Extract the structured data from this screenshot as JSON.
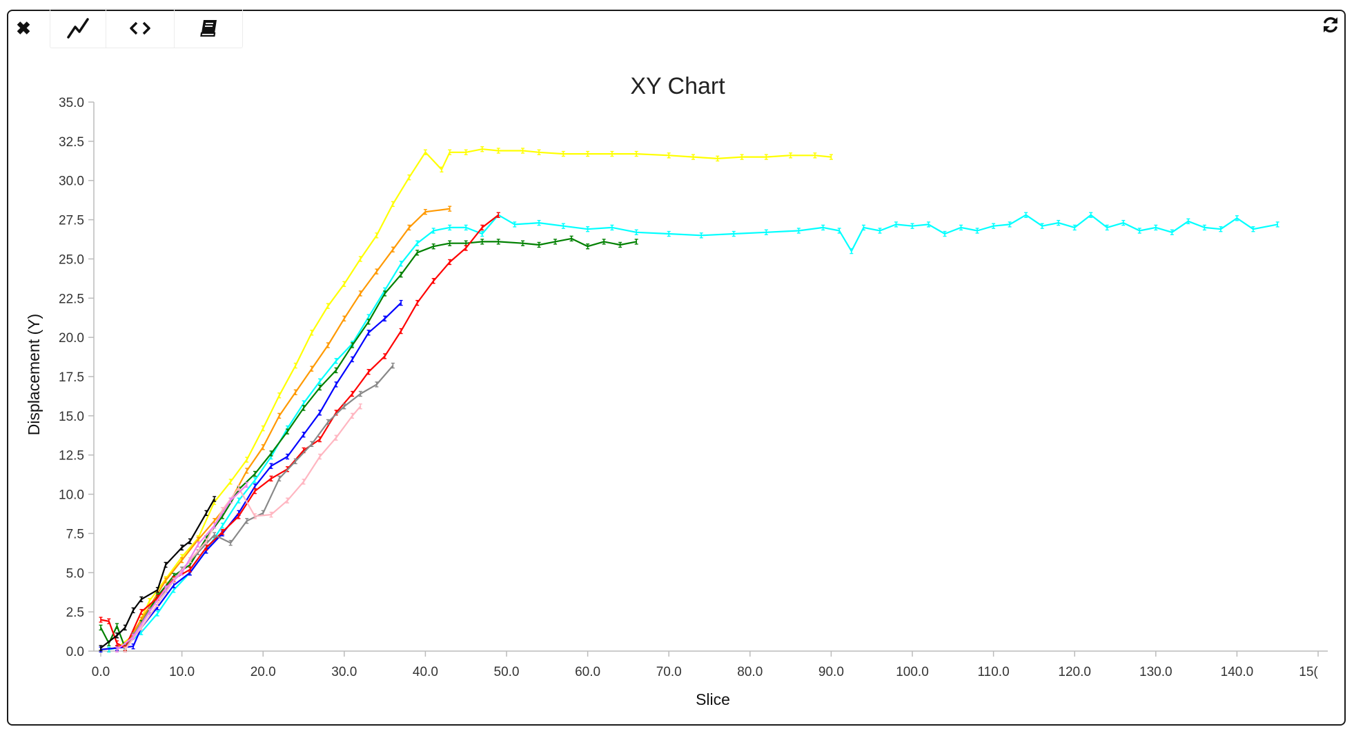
{
  "toolbar": {
    "close_icon": "close-icon",
    "tabs": [
      {
        "name": "chart-tab",
        "icon": "line-chart-icon"
      },
      {
        "name": "code-tab",
        "icon": "code-icon"
      },
      {
        "name": "docs-tab",
        "icon": "book-icon"
      }
    ],
    "refresh_icon": "refresh-icon"
  },
  "chart_data": {
    "type": "line",
    "title": "XY Chart",
    "xlabel": "Slice",
    "ylabel": "Displacement (Y)",
    "xlim": [
      0,
      150
    ],
    "ylim": [
      0,
      35
    ],
    "x_ticks": [
      "0.0",
      "10.0",
      "20.0",
      "30.0",
      "40.0",
      "50.0",
      "60.0",
      "70.0",
      "80.0",
      "90.0",
      "100.0",
      "110.0",
      "120.0",
      "130.0",
      "140.0",
      "15("
    ],
    "y_ticks": [
      "0.0",
      "2.5",
      "5.0",
      "7.5",
      "10.0",
      "12.5",
      "15.0",
      "17.5",
      "20.0",
      "22.5",
      "25.0",
      "27.5",
      "30.0",
      "32.5",
      "35.0"
    ],
    "grid": false,
    "legend": "none",
    "series": [
      {
        "color": "#ffff00",
        "points": [
          [
            0,
            0.1
          ],
          [
            2,
            0.2
          ],
          [
            4,
            1.0
          ],
          [
            6,
            3.2
          ],
          [
            8,
            4.6
          ],
          [
            10,
            6.0
          ],
          [
            12,
            7.2
          ],
          [
            14,
            9.5
          ],
          [
            16,
            10.8
          ],
          [
            18,
            12.2
          ],
          [
            20,
            14.2
          ],
          [
            22,
            16.3
          ],
          [
            24,
            18.2
          ],
          [
            26,
            20.3
          ],
          [
            28,
            22.0
          ],
          [
            30,
            23.4
          ],
          [
            32,
            25.0
          ],
          [
            34,
            26.5
          ],
          [
            36,
            28.5
          ],
          [
            38,
            30.2
          ],
          [
            40,
            31.8
          ],
          [
            42,
            30.7
          ],
          [
            43,
            31.8
          ],
          [
            45,
            31.8
          ],
          [
            47,
            32.0
          ],
          [
            49,
            31.9
          ],
          [
            52,
            31.9
          ],
          [
            54,
            31.8
          ],
          [
            57,
            31.7
          ],
          [
            60,
            31.7
          ],
          [
            63,
            31.7
          ],
          [
            66,
            31.7
          ],
          [
            70,
            31.6
          ],
          [
            73,
            31.5
          ],
          [
            76,
            31.4
          ],
          [
            79,
            31.5
          ],
          [
            82,
            31.5
          ],
          [
            85,
            31.6
          ],
          [
            88,
            31.6
          ],
          [
            90,
            31.5
          ]
        ]
      },
      {
        "color": "#ff9900",
        "points": [
          [
            1,
            0.1
          ],
          [
            3,
            0.4
          ],
          [
            5,
            2.0
          ],
          [
            8,
            4.5
          ],
          [
            10,
            5.8
          ],
          [
            12,
            7.1
          ],
          [
            14,
            8.3
          ],
          [
            16,
            9.6
          ],
          [
            18,
            11.5
          ],
          [
            20,
            13.0
          ],
          [
            22,
            15.0
          ],
          [
            24,
            16.5
          ],
          [
            26,
            18.0
          ],
          [
            28,
            19.5
          ],
          [
            30,
            21.2
          ],
          [
            32,
            22.8
          ],
          [
            34,
            24.2
          ],
          [
            36,
            25.6
          ],
          [
            38,
            27.0
          ],
          [
            40,
            28.0
          ],
          [
            43,
            28.2
          ]
        ]
      },
      {
        "color": "#00ffff",
        "points": [
          [
            1,
            0.1
          ],
          [
            3,
            0.3
          ],
          [
            5,
            1.2
          ],
          [
            7,
            2.4
          ],
          [
            9,
            3.9
          ],
          [
            11,
            5.0
          ],
          [
            13,
            6.4
          ],
          [
            15,
            8.0
          ],
          [
            17,
            9.6
          ],
          [
            19,
            10.9
          ],
          [
            21,
            12.4
          ],
          [
            23,
            14.2
          ],
          [
            25,
            15.8
          ],
          [
            27,
            17.2
          ],
          [
            29,
            18.5
          ],
          [
            31,
            19.6
          ],
          [
            33,
            21.3
          ],
          [
            35,
            23.0
          ],
          [
            37,
            24.7
          ],
          [
            39,
            26.0
          ],
          [
            41,
            26.8
          ],
          [
            43,
            27.0
          ],
          [
            45,
            27.0
          ],
          [
            47,
            26.6
          ],
          [
            49,
            27.8
          ],
          [
            51,
            27.2
          ],
          [
            54,
            27.3
          ],
          [
            57,
            27.1
          ],
          [
            60,
            26.9
          ],
          [
            63,
            27.0
          ],
          [
            66,
            26.7
          ],
          [
            70,
            26.6
          ],
          [
            74,
            26.5
          ],
          [
            78,
            26.6
          ],
          [
            82,
            26.7
          ],
          [
            86,
            26.8
          ],
          [
            89,
            27.0
          ],
          [
            91,
            26.8
          ],
          [
            92.5,
            25.5
          ],
          [
            94,
            27.0
          ],
          [
            96,
            26.8
          ],
          [
            98,
            27.2
          ],
          [
            100,
            27.1
          ],
          [
            102,
            27.2
          ],
          [
            104,
            26.6
          ],
          [
            106,
            27.0
          ],
          [
            108,
            26.8
          ],
          [
            110,
            27.1
          ],
          [
            112,
            27.2
          ],
          [
            114,
            27.8
          ],
          [
            116,
            27.1
          ],
          [
            118,
            27.3
          ],
          [
            120,
            27.0
          ],
          [
            122,
            27.8
          ],
          [
            124,
            27.0
          ],
          [
            126,
            27.3
          ],
          [
            128,
            26.8
          ],
          [
            130,
            27.0
          ],
          [
            132,
            26.7
          ],
          [
            134,
            27.4
          ],
          [
            136,
            27.0
          ],
          [
            138,
            26.9
          ],
          [
            140,
            27.6
          ],
          [
            142,
            26.9
          ],
          [
            145,
            27.2
          ]
        ]
      },
      {
        "color": "#008000",
        "points": [
          [
            0,
            1.5
          ],
          [
            1,
            0.5
          ],
          [
            2,
            1.6
          ],
          [
            3,
            0.2
          ],
          [
            5,
            1.8
          ],
          [
            7,
            3.5
          ],
          [
            9,
            4.8
          ],
          [
            11,
            5.5
          ],
          [
            13,
            7.2
          ],
          [
            15,
            8.6
          ],
          [
            17,
            10.3
          ],
          [
            19,
            11.3
          ],
          [
            21,
            12.6
          ],
          [
            23,
            14.0
          ],
          [
            25,
            15.5
          ],
          [
            27,
            16.8
          ],
          [
            29,
            17.9
          ],
          [
            31,
            19.5
          ],
          [
            33,
            21.0
          ],
          [
            35,
            22.8
          ],
          [
            37,
            24.0
          ],
          [
            39,
            25.4
          ],
          [
            41,
            25.8
          ],
          [
            43,
            26.0
          ],
          [
            45,
            26.0
          ],
          [
            47,
            26.1
          ],
          [
            49,
            26.1
          ],
          [
            52,
            26.0
          ],
          [
            54,
            25.9
          ],
          [
            56,
            26.1
          ],
          [
            58,
            26.3
          ],
          [
            60,
            25.8
          ],
          [
            62,
            26.1
          ],
          [
            64,
            25.9
          ],
          [
            66,
            26.1
          ]
        ]
      },
      {
        "color": "#0000ff",
        "points": [
          [
            0,
            0.1
          ],
          [
            2,
            0.2
          ],
          [
            4,
            0.3
          ],
          [
            5,
            1.5
          ],
          [
            7,
            2.8
          ],
          [
            9,
            4.2
          ],
          [
            11,
            5.0
          ],
          [
            13,
            6.4
          ],
          [
            15,
            7.5
          ],
          [
            17,
            8.8
          ],
          [
            19,
            10.5
          ],
          [
            21,
            11.8
          ],
          [
            23,
            12.4
          ],
          [
            25,
            13.8
          ],
          [
            27,
            15.2
          ],
          [
            29,
            17.0
          ],
          [
            31,
            18.6
          ],
          [
            33,
            20.3
          ],
          [
            35,
            21.2
          ],
          [
            37,
            22.2
          ]
        ]
      },
      {
        "color": "#ff0000",
        "points": [
          [
            0,
            2.0
          ],
          [
            1,
            1.9
          ],
          [
            2,
            0.5
          ],
          [
            3,
            0.2
          ],
          [
            5,
            2.5
          ],
          [
            7,
            3.4
          ],
          [
            9,
            4.6
          ],
          [
            11,
            5.2
          ],
          [
            13,
            6.6
          ],
          [
            15,
            7.6
          ],
          [
            17,
            8.6
          ],
          [
            19,
            10.2
          ],
          [
            21,
            11.0
          ],
          [
            23,
            11.6
          ],
          [
            25,
            12.8
          ],
          [
            27,
            13.5
          ],
          [
            29,
            15.2
          ],
          [
            31,
            16.4
          ],
          [
            33,
            17.8
          ],
          [
            35,
            18.8
          ],
          [
            37,
            20.4
          ],
          [
            39,
            22.2
          ],
          [
            41,
            23.6
          ],
          [
            43,
            24.8
          ],
          [
            45,
            25.7
          ],
          [
            47,
            27.0
          ],
          [
            49,
            27.8
          ]
        ]
      },
      {
        "color": "#888888",
        "points": [
          [
            3,
            0.1
          ],
          [
            4,
            1.0
          ],
          [
            6,
            2.6
          ],
          [
            8,
            3.9
          ],
          [
            10,
            5.2
          ],
          [
            12,
            6.3
          ],
          [
            14,
            7.4
          ],
          [
            16,
            6.9
          ],
          [
            18,
            8.3
          ],
          [
            20,
            8.8
          ],
          [
            22,
            11.0
          ],
          [
            24,
            12.1
          ],
          [
            26,
            13.2
          ],
          [
            28,
            14.6
          ],
          [
            30,
            15.6
          ],
          [
            32,
            16.4
          ],
          [
            34,
            17.0
          ],
          [
            36,
            18.2
          ]
        ]
      },
      {
        "color": "#ffb6c1",
        "points": [
          [
            3,
            0.1
          ],
          [
            5,
            1.5
          ],
          [
            7,
            3.0
          ],
          [
            9,
            4.5
          ],
          [
            11,
            5.8
          ],
          [
            13,
            7.0
          ],
          [
            15,
            9.0
          ],
          [
            17,
            10.4
          ],
          [
            19,
            8.6
          ],
          [
            21,
            8.7
          ],
          [
            23,
            9.6
          ],
          [
            25,
            10.8
          ],
          [
            27,
            12.4
          ],
          [
            29,
            13.6
          ],
          [
            31,
            15.0
          ],
          [
            32,
            15.6
          ]
        ]
      },
      {
        "color": "#ee82ee",
        "points": [
          [
            2,
            0.1
          ],
          [
            4,
            0.9
          ],
          [
            6,
            2.5
          ],
          [
            8,
            4.0
          ],
          [
            10,
            5.0
          ],
          [
            12,
            6.8
          ],
          [
            14,
            8.0
          ],
          [
            16,
            9.6
          ],
          [
            18,
            10.6
          ]
        ]
      },
      {
        "color": "#000000",
        "points": [
          [
            0,
            0.2
          ],
          [
            2,
            1.0
          ],
          [
            3,
            1.5
          ],
          [
            4,
            2.6
          ],
          [
            5,
            3.3
          ],
          [
            7,
            3.9
          ],
          [
            8,
            5.5
          ],
          [
            10,
            6.6
          ],
          [
            11,
            7.0
          ],
          [
            13,
            8.8
          ],
          [
            14,
            9.7
          ]
        ]
      }
    ]
  }
}
